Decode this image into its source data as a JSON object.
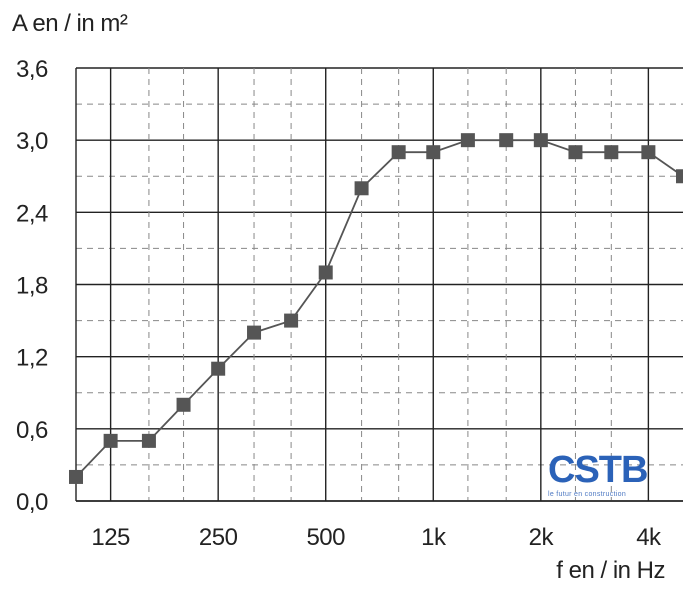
{
  "chart_data": {
    "type": "line",
    "title": "",
    "ylabel": "A en / in m²",
    "xlabel": "f en / in Hz",
    "x_scale": "log",
    "grid": true,
    "ylim": [
      0,
      3.6
    ],
    "yticks": [
      "0,0",
      "0,6",
      "1,2",
      "1,8",
      "2,4",
      "3,0",
      "3,6"
    ],
    "xtick_labels": [
      {
        "label": "125",
        "value": 125
      },
      {
        "label": "250",
        "value": 250
      },
      {
        "label": "500",
        "value": 500
      },
      {
        "label": "1k",
        "value": 1000
      },
      {
        "label": "2k",
        "value": 2000
      },
      {
        "label": "4k",
        "value": 4000
      }
    ],
    "series": [
      {
        "color": "#555555",
        "points": [
          {
            "x": 100,
            "y": 0.2
          },
          {
            "x": 125,
            "y": 0.5
          },
          {
            "x": 160,
            "y": 0.5
          },
          {
            "x": 200,
            "y": 0.8
          },
          {
            "x": 250,
            "y": 1.1
          },
          {
            "x": 315,
            "y": 1.4
          },
          {
            "x": 400,
            "y": 1.5
          },
          {
            "x": 500,
            "y": 1.9
          },
          {
            "x": 630,
            "y": 2.6
          },
          {
            "x": 800,
            "y": 2.9
          },
          {
            "x": 1000,
            "y": 2.9
          },
          {
            "x": 1250,
            "y": 3.0
          },
          {
            "x": 1600,
            "y": 3.0
          },
          {
            "x": 2000,
            "y": 3.0
          },
          {
            "x": 2500,
            "y": 2.9
          },
          {
            "x": 3150,
            "y": 2.9
          },
          {
            "x": 4000,
            "y": 2.9
          },
          {
            "x": 5000,
            "y": 2.7
          }
        ]
      }
    ]
  },
  "logo": {
    "text": "CSTB",
    "subtext": "le futur en construction",
    "color": "#2b62b8"
  }
}
